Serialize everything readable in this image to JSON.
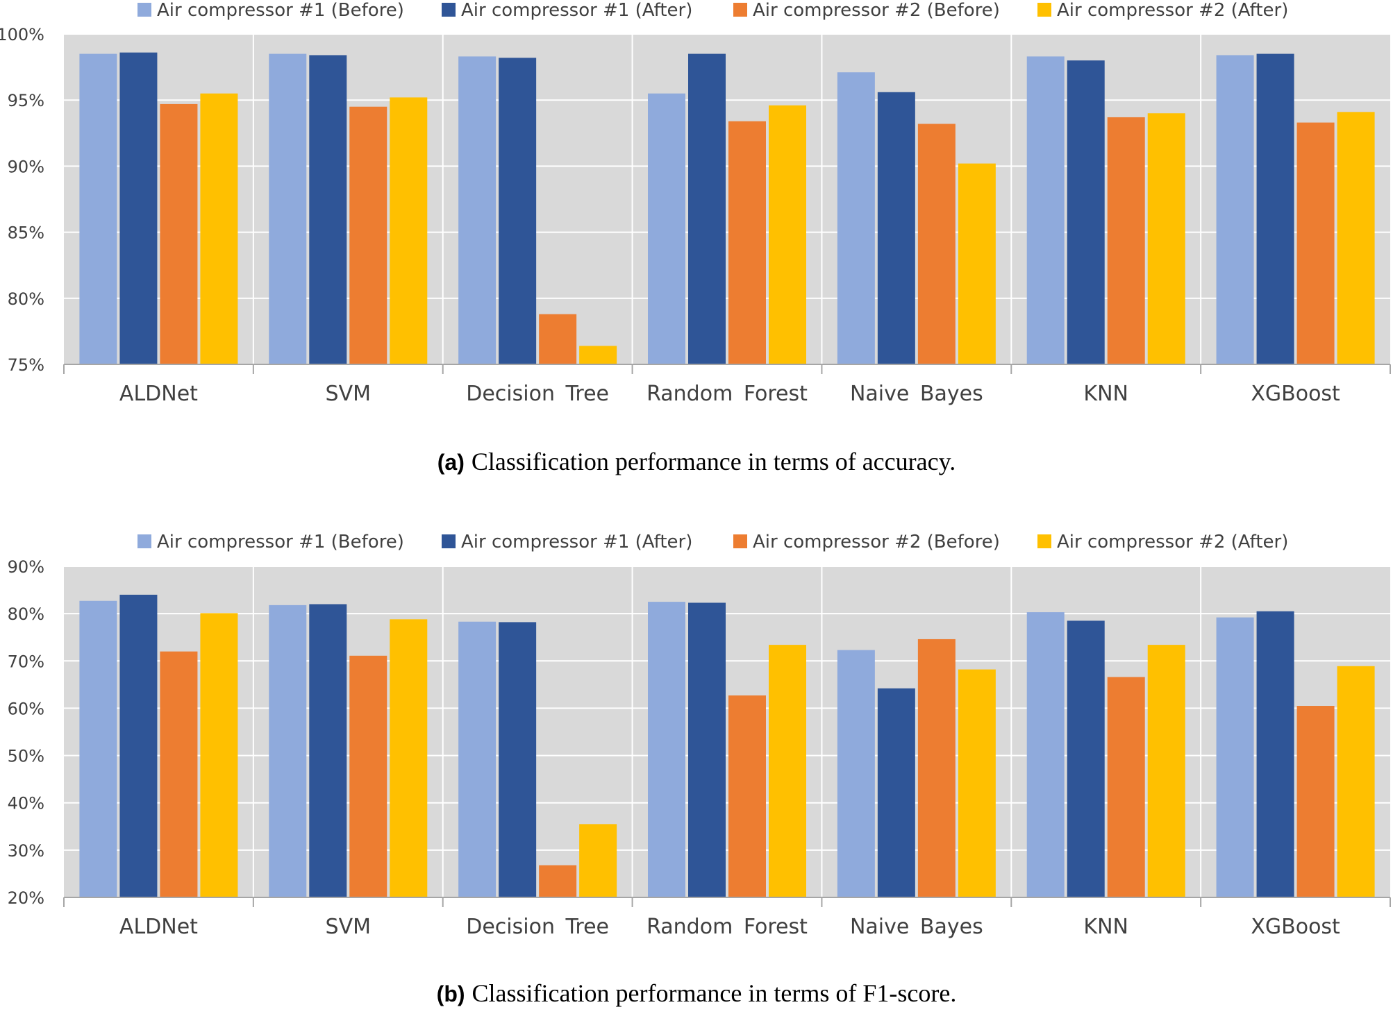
{
  "legend": [
    {
      "name": "Air compressor #1 (Before)",
      "color": "#8FAADC"
    },
    {
      "name": "Air compressor #1 (After)",
      "color": "#2F5597"
    },
    {
      "name": "Air compressor #2 (Before)",
      "color": "#ED7D31"
    },
    {
      "name": "Air compressor #2 (After)",
      "color": "#FFC000"
    }
  ],
  "captions": [
    {
      "tag": "(a)",
      "text": "Classification performance in terms of accuracy."
    },
    {
      "tag": "(b)",
      "text": "Classification performance in terms of F1-score."
    }
  ],
  "chart_data": [
    {
      "type": "bar",
      "title": "Classification performance in terms of accuracy.",
      "categories": [
        "ALDNet",
        "SVM",
        "Decision Tree",
        "Random Forest",
        "Naive Bayes",
        "KNN",
        "XGBoost"
      ],
      "ylim": [
        75,
        100
      ],
      "yticks": [
        "100%",
        "95%",
        "90%",
        "85%",
        "80%",
        "75%"
      ],
      "ytick_values": [
        100,
        95,
        90,
        85,
        80,
        75
      ],
      "series": [
        {
          "name": "Air compressor #1 (Before)",
          "values": [
            98.5,
            98.5,
            98.3,
            95.5,
            97.1,
            98.3,
            98.4
          ]
        },
        {
          "name": "Air compressor #1 (After)",
          "values": [
            98.6,
            98.4,
            98.2,
            98.5,
            95.6,
            98.0,
            98.5
          ]
        },
        {
          "name": "Air compressor #2 (Before)",
          "values": [
            94.7,
            94.5,
            78.8,
            93.4,
            93.2,
            93.7,
            93.3
          ]
        },
        {
          "name": "Air compressor #2 (After)",
          "values": [
            95.5,
            95.2,
            76.4,
            94.6,
            90.2,
            94.0,
            94.1
          ]
        }
      ]
    },
    {
      "type": "bar",
      "title": "Classification performance in terms of F1-score.",
      "categories": [
        "ALDNet",
        "SVM",
        "Decision Tree",
        "Random Forest",
        "Naive Bayes",
        "KNN",
        "XGBoost"
      ],
      "ylim": [
        20,
        90
      ],
      "yticks": [
        "90%",
        "80%",
        "70%",
        "60%",
        "50%",
        "40%",
        "30%",
        "20%"
      ],
      "ytick_values": [
        90,
        80,
        70,
        60,
        50,
        40,
        30,
        20
      ],
      "series": [
        {
          "name": "Air compressor #1 (Before)",
          "values": [
            82.7,
            81.8,
            78.3,
            82.5,
            72.3,
            80.3,
            79.2
          ]
        },
        {
          "name": "Air compressor #1 (After)",
          "values": [
            84.0,
            82.0,
            78.2,
            82.3,
            64.2,
            78.5,
            80.5
          ]
        },
        {
          "name": "Air compressor #2 (Before)",
          "values": [
            72.0,
            71.1,
            26.8,
            62.7,
            74.6,
            66.6,
            60.5
          ]
        },
        {
          "name": "Air compressor #2 (After)",
          "values": [
            80.1,
            78.8,
            35.5,
            73.4,
            68.2,
            73.4,
            68.9
          ]
        }
      ]
    }
  ]
}
